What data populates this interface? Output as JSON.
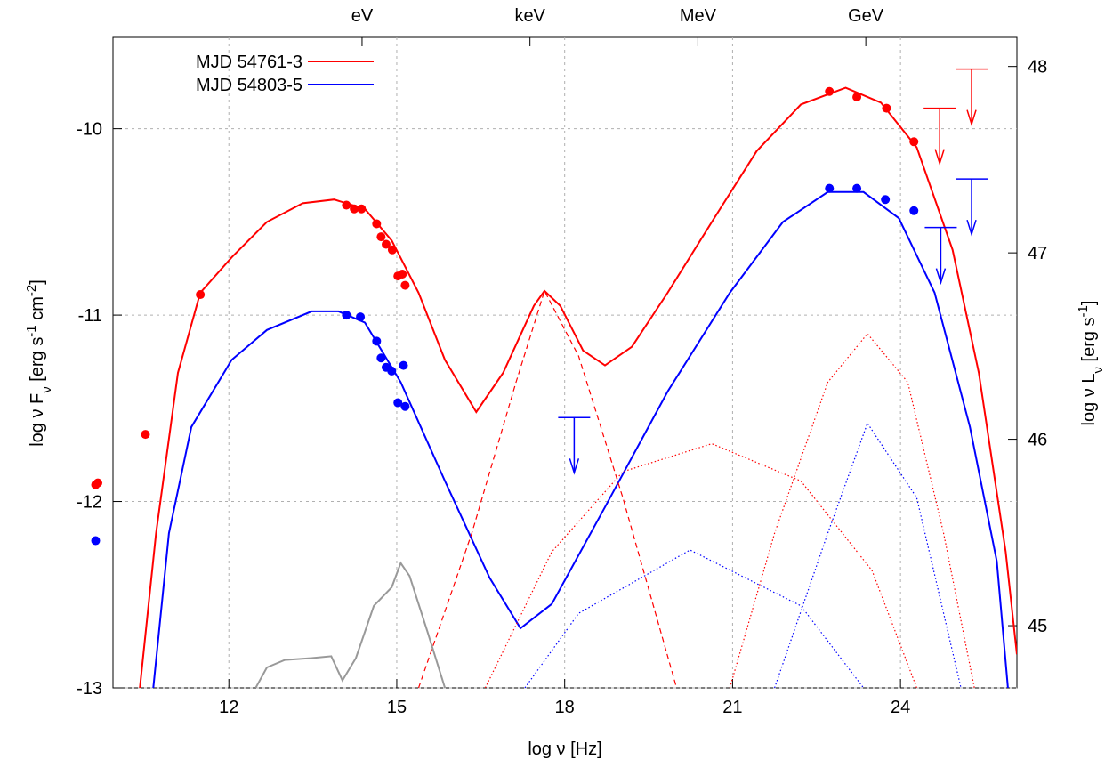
{
  "chart_data": {
    "type": "line",
    "xlabel": "log ν [Hz]",
    "ylabel": [
      {
        "text": "log ν F"
      },
      {
        "sub": "ν"
      },
      {
        "text": " [erg s"
      },
      {
        "sup": "-1"
      },
      {
        "text": " cm"
      },
      {
        "sup": "-2"
      },
      {
        "text": "]"
      }
    ],
    "y2label": [
      {
        "text": "log ν L"
      },
      {
        "sub": "ν"
      },
      {
        "text": " [erg s"
      },
      {
        "sup": "-1"
      },
      {
        "text": "]"
      }
    ],
    "xlim": [
      9.93,
      26.08
    ],
    "ylim": [
      -13,
      -9.51
    ],
    "y2lim": [
      44.666,
      48.156
    ],
    "xticks": [
      12,
      15,
      18,
      21,
      24
    ],
    "yticks": [
      -13,
      -12,
      -11,
      -10
    ],
    "y2ticks": [
      45,
      46,
      47,
      48
    ],
    "x2ticks": [
      {
        "value": 14.38,
        "label": "eV"
      },
      {
        "value": 17.38,
        "label": "keV"
      },
      {
        "value": 20.38,
        "label": "MeV"
      },
      {
        "value": 23.38,
        "label": "GeV"
      }
    ],
    "grid": true,
    "legend": "upper left",
    "series": [
      {
        "name": "MJD 54761-3",
        "type": "line",
        "color": "#ff0000",
        "style": "solid",
        "x": [
          10.41,
          10.7,
          11.09,
          11.49,
          12.05,
          12.68,
          13.32,
          13.88,
          14.43,
          14.91,
          15.39,
          15.86,
          16.42,
          16.9,
          17.45,
          17.64,
          17.92,
          18.33,
          18.72,
          19.2,
          19.84,
          20.63,
          21.43,
          22.22,
          23.02,
          23.65,
          24.29,
          24.93,
          25.4,
          25.88,
          26.08
        ],
        "values": [
          -13,
          -12.17,
          -11.31,
          -10.88,
          -10.69,
          -10.5,
          -10.4,
          -10.38,
          -10.43,
          -10.6,
          -10.88,
          -11.24,
          -11.52,
          -11.31,
          -10.95,
          -10.87,
          -10.95,
          -11.19,
          -11.27,
          -11.17,
          -10.88,
          -10.5,
          -10.12,
          -9.87,
          -9.78,
          -9.86,
          -10.1,
          -10.65,
          -11.31,
          -12.27,
          -12.82
        ]
      },
      {
        "name": "MJD 54803-5",
        "type": "line",
        "color": "#0000ff",
        "style": "solid",
        "x": [
          10.65,
          10.93,
          11.33,
          12.05,
          12.68,
          13.48,
          13.96,
          14.43,
          15.07,
          15.86,
          16.66,
          17.21,
          17.77,
          18.72,
          19.84,
          20.95,
          21.9,
          22.7,
          23.34,
          23.97,
          24.61,
          25.24,
          25.72,
          25.92
        ],
        "values": [
          -13,
          -12.17,
          -11.6,
          -11.24,
          -11.08,
          -10.98,
          -10.98,
          -11.04,
          -11.36,
          -11.89,
          -12.41,
          -12.68,
          -12.55,
          -12.03,
          -11.41,
          -10.88,
          -10.5,
          -10.34,
          -10.34,
          -10.48,
          -10.88,
          -11.6,
          -12.32,
          -13
        ]
      },
      {
        "type": "line",
        "color": "#ff0000",
        "style": "dashed",
        "x": [
          15.39,
          16.34,
          17.13,
          17.64,
          18.25,
          19.04,
          20.0
        ],
        "values": [
          -13,
          -12.17,
          -11.36,
          -10.87,
          -11.22,
          -11.98,
          -13
        ]
      },
      {
        "type": "line",
        "color": "#ff0000",
        "style": "dotted",
        "x": [
          20.95,
          21.75,
          22.7,
          23.41,
          24.13,
          24.77,
          25.32
        ],
        "values": [
          -13,
          -12.17,
          -11.36,
          -11.1,
          -11.36,
          -12.17,
          -13
        ]
      },
      {
        "type": "line",
        "color": "#ff0000",
        "style": "dotted",
        "x": [
          16.58,
          17.77,
          19.04,
          20.63,
          22.22,
          23.49,
          24.29
        ],
        "values": [
          -13,
          -12.27,
          -11.84,
          -11.69,
          -11.89,
          -12.37,
          -13
        ]
      },
      {
        "type": "line",
        "color": "#0000ff",
        "style": "dotted",
        "x": [
          17.29,
          18.25,
          20.24,
          22.22,
          23.34
        ],
        "values": [
          -13,
          -12.6,
          -12.26,
          -12.56,
          -13
        ]
      },
      {
        "type": "line",
        "color": "#0000ff",
        "style": "dotted",
        "x": [
          21.75,
          22.7,
          23.41,
          24.29,
          25.08
        ],
        "values": [
          -13,
          -12.17,
          -11.58,
          -11.98,
          -13
        ]
      },
      {
        "type": "line",
        "color": "#999999",
        "style": "solid",
        "x": [
          12.48,
          12.68,
          13.0,
          13.48,
          13.83,
          14.03,
          14.27,
          14.59,
          14.91,
          15.07,
          15.23,
          15.55,
          15.86
        ],
        "values": [
          -13,
          -12.89,
          -12.85,
          -12.84,
          -12.83,
          -12.96,
          -12.84,
          -12.56,
          -12.46,
          -12.33,
          -12.4,
          -12.7,
          -13
        ]
      },
      {
        "type": "scatter",
        "color": "#ff0000",
        "x": [
          9.62,
          9.66,
          10.51,
          11.49,
          14.1,
          14.24,
          14.37,
          14.64,
          14.72,
          14.81,
          14.92,
          15.02,
          15.1,
          15.15,
          22.73,
          23.22,
          23.75,
          24.24
        ],
        "values": [
          -11.91,
          -11.9,
          -11.64,
          -10.89,
          -10.41,
          -10.43,
          -10.43,
          -10.51,
          -10.58,
          -10.62,
          -10.65,
          -10.79,
          -10.78,
          -10.84,
          -9.8,
          -9.83,
          -9.89,
          -10.07
        ]
      },
      {
        "type": "scatter",
        "color": "#0000ff",
        "x": [
          9.62,
          14.1,
          14.35,
          14.64,
          14.72,
          14.81,
          14.91,
          15.02,
          15.12,
          15.15,
          22.73,
          23.22,
          23.73,
          24.24
        ],
        "values": [
          -12.21,
          -11.0,
          -11.01,
          -11.14,
          -11.23,
          -11.28,
          -11.3,
          -11.47,
          -11.27,
          -11.49,
          -10.32,
          -10.32,
          -10.38,
          -10.44
        ]
      },
      {
        "type": "upper_limit",
        "color": "#ff0000",
        "x": [
          25.27,
          24.7
        ],
        "values": [
          -9.68,
          -9.89
        ]
      },
      {
        "type": "upper_limit",
        "color": "#0000ff",
        "x": [
          18.17,
          25.27,
          24.72
        ],
        "values": [
          -11.55,
          -10.27,
          -10.53
        ]
      }
    ]
  }
}
